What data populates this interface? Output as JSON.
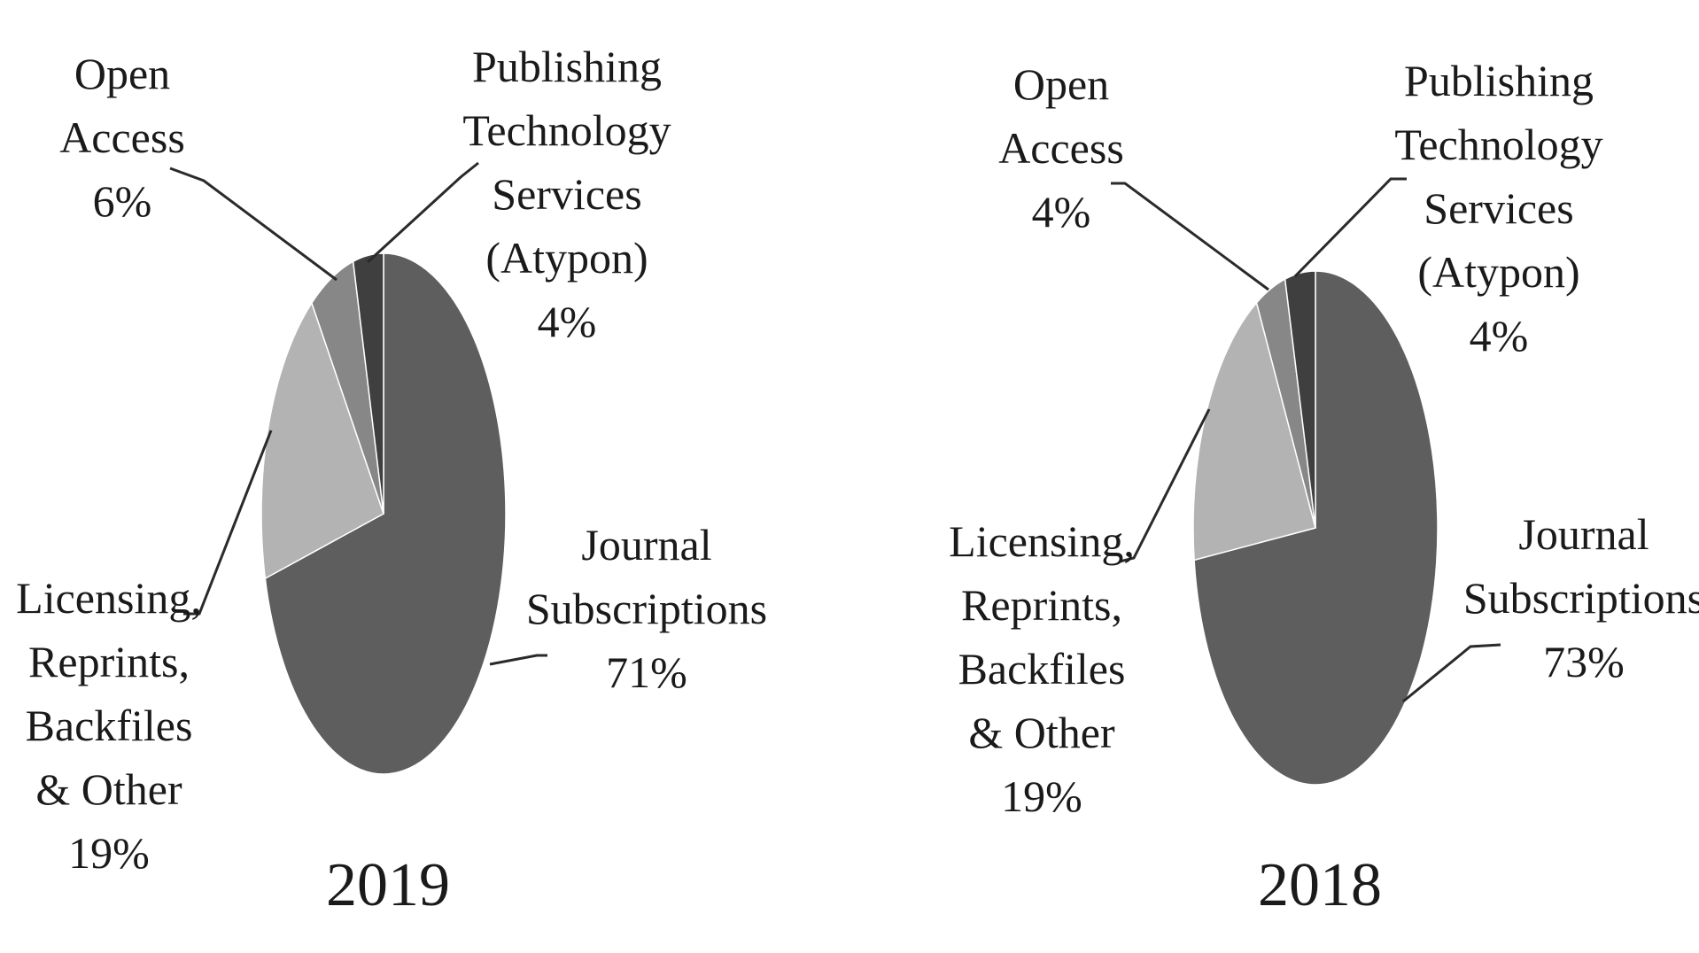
{
  "chart_data": [
    {
      "type": "pie",
      "year_label": "2019",
      "slices": [
        {
          "name": "Journal Subscriptions",
          "label_lines": [
            "Journal",
            "Subscriptions"
          ],
          "pct_label": "71%",
          "value": 71,
          "color": "#5e5e5e"
        },
        {
          "name": "Licensing, Reprints, Backfiles & Other",
          "label_lines": [
            "Licensing,",
            "Reprints,",
            "Backfiles",
            "& Other"
          ],
          "pct_label": "19%",
          "value": 19,
          "color": "#b3b3b3"
        },
        {
          "name": "Open Access",
          "label_lines": [
            "Open",
            "Access"
          ],
          "pct_label": "6%",
          "value": 6,
          "color": "#878787"
        },
        {
          "name": "Publishing Technology Services (Atypon)",
          "label_lines": [
            "Publishing",
            "Technology",
            "Services",
            "(Atypon)"
          ],
          "pct_label": "4%",
          "value": 4,
          "color": "#3f3f3f"
        }
      ]
    },
    {
      "type": "pie",
      "year_label": "2018",
      "slices": [
        {
          "name": "Journal Subscriptions",
          "label_lines": [
            "Journal",
            "Subscriptions"
          ],
          "pct_label": "73%",
          "value": 73,
          "color": "#5e5e5e"
        },
        {
          "name": "Licensing, Reprints, Backfiles & Other",
          "label_lines": [
            "Licensing,",
            "Reprints,",
            "Backfiles",
            "& Other"
          ],
          "pct_label": "19%",
          "value": 19,
          "color": "#b3b3b3"
        },
        {
          "name": "Open Access",
          "label_lines": [
            "Open",
            "Access"
          ],
          "pct_label": "4%",
          "value": 4,
          "color": "#878787"
        },
        {
          "name": "Publishing Technology Services (Atypon)",
          "label_lines": [
            "Publishing",
            "Technology",
            "Services",
            "(Atypon)"
          ],
          "pct_label": "4%",
          "value": 4,
          "color": "#3f3f3f"
        }
      ]
    }
  ]
}
